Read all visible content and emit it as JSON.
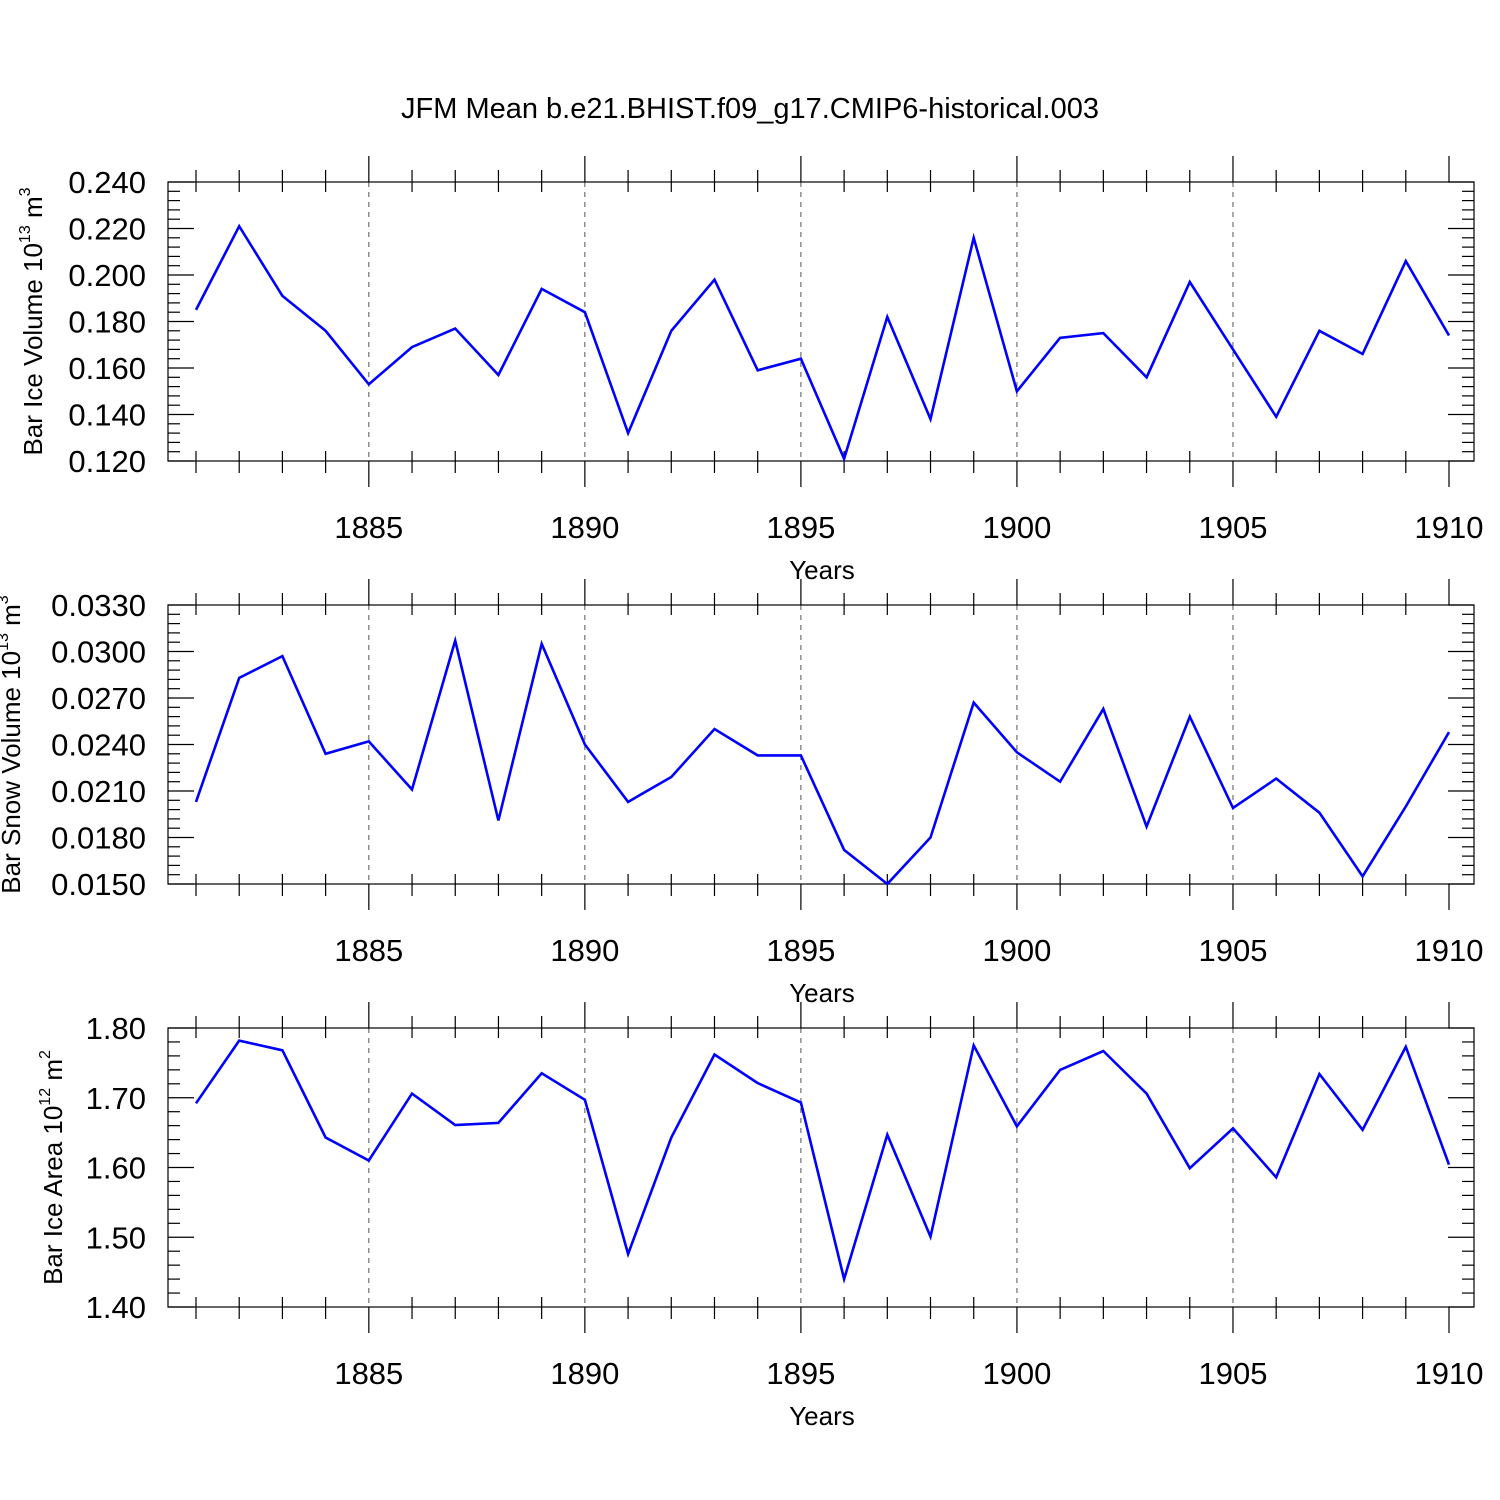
{
  "figure": {
    "title": "JFM Mean b.e21.BHIST.f09_g17.CMIP6-historical.003",
    "line_color": "#0000ff"
  },
  "chart_data": [
    {
      "type": "line",
      "title": "JFM Mean b.e21.BHIST.f09_g17.CMIP6-historical.003",
      "xlabel": "Years",
      "ylabel": "Bar Ice Volume 10",
      "ylabel_exp": "13",
      "ylabel_unit": "m",
      "ylabel_unit_exp": "3",
      "xlim": [
        1881,
        1910
      ],
      "ylim": [
        0.12,
        0.24
      ],
      "yticks": [
        "0.120",
        "0.140",
        "0.160",
        "0.180",
        "0.200",
        "0.220",
        "0.240"
      ],
      "xticks": [
        "1885",
        "1890",
        "1895",
        "1900",
        "1905",
        "1910"
      ],
      "grid_x_dashed": [
        1885,
        1890,
        1895,
        1900,
        1905
      ],
      "x": [
        1881,
        1882,
        1883,
        1884,
        1885,
        1886,
        1887,
        1888,
        1889,
        1890,
        1891,
        1892,
        1893,
        1894,
        1895,
        1896,
        1897,
        1898,
        1899,
        1900,
        1901,
        1902,
        1903,
        1904,
        1905,
        1906,
        1907,
        1908,
        1909,
        1910
      ],
      "series": [
        {
          "name": "Bar Ice Volume",
          "values": [
            0.185,
            0.221,
            0.191,
            0.176,
            0.153,
            0.169,
            0.177,
            0.157,
            0.194,
            0.184,
            0.132,
            0.176,
            0.198,
            0.159,
            0.164,
            0.121,
            0.182,
            0.138,
            0.216,
            0.15,
            0.173,
            0.175,
            0.156,
            0.197,
            0.168,
            0.139,
            0.176,
            0.166,
            0.206,
            0.174
          ]
        }
      ]
    },
    {
      "type": "line",
      "xlabel": "Years",
      "ylabel": "Bar Snow Volume 10",
      "ylabel_exp": "13",
      "ylabel_unit": "m",
      "ylabel_unit_exp": "3",
      "xlim": [
        1881,
        1910
      ],
      "ylim": [
        0.015,
        0.033
      ],
      "yticks": [
        "0.0150",
        "0.0180",
        "0.0210",
        "0.0240",
        "0.0270",
        "0.0300",
        "0.0330"
      ],
      "xticks": [
        "1885",
        "1890",
        "1895",
        "1900",
        "1905",
        "1910"
      ],
      "grid_x_dashed": [
        1885,
        1890,
        1895,
        1900,
        1905
      ],
      "x": [
        1881,
        1882,
        1883,
        1884,
        1885,
        1886,
        1887,
        1888,
        1889,
        1890,
        1891,
        1892,
        1893,
        1894,
        1895,
        1896,
        1897,
        1898,
        1899,
        1900,
        1901,
        1902,
        1903,
        1904,
        1905,
        1906,
        1907,
        1908,
        1909,
        1910
      ],
      "series": [
        {
          "name": "Bar Snow Volume",
          "values": [
            0.0203,
            0.0283,
            0.0297,
            0.0234,
            0.0242,
            0.0211,
            0.0307,
            0.0191,
            0.0305,
            0.024,
            0.0203,
            0.0219,
            0.025,
            0.0233,
            0.0233,
            0.0172,
            0.015,
            0.018,
            0.0267,
            0.0235,
            0.0216,
            0.0263,
            0.0187,
            0.0258,
            0.0199,
            0.0218,
            0.0196,
            0.0155,
            0.02,
            0.0248
          ]
        }
      ]
    },
    {
      "type": "line",
      "xlabel": "Years",
      "ylabel": "Bar Ice Area 10",
      "ylabel_exp": "12",
      "ylabel_unit": "m",
      "ylabel_unit_exp": "2",
      "xlim": [
        1881,
        1910
      ],
      "ylim": [
        1.4,
        1.8
      ],
      "yticks": [
        "1.40",
        "1.50",
        "1.60",
        "1.70",
        "1.80"
      ],
      "xticks": [
        "1885",
        "1890",
        "1895",
        "1900",
        "1905",
        "1910"
      ],
      "grid_x_dashed": [
        1885,
        1890,
        1895,
        1900,
        1905
      ],
      "x": [
        1881,
        1882,
        1883,
        1884,
        1885,
        1886,
        1887,
        1888,
        1889,
        1890,
        1891,
        1892,
        1893,
        1894,
        1895,
        1896,
        1897,
        1898,
        1899,
        1900,
        1901,
        1902,
        1903,
        1904,
        1905,
        1906,
        1907,
        1908,
        1909,
        1910
      ],
      "series": [
        {
          "name": "Bar Ice Area",
          "values": [
            1.692,
            1.782,
            1.768,
            1.643,
            1.61,
            1.706,
            1.661,
            1.664,
            1.735,
            1.697,
            1.476,
            1.643,
            1.762,
            1.721,
            1.693,
            1.44,
            1.647,
            1.501,
            1.775,
            1.659,
            1.74,
            1.767,
            1.706,
            1.599,
            1.656,
            1.586,
            1.734,
            1.654,
            1.773,
            1.604
          ]
        }
      ]
    }
  ]
}
